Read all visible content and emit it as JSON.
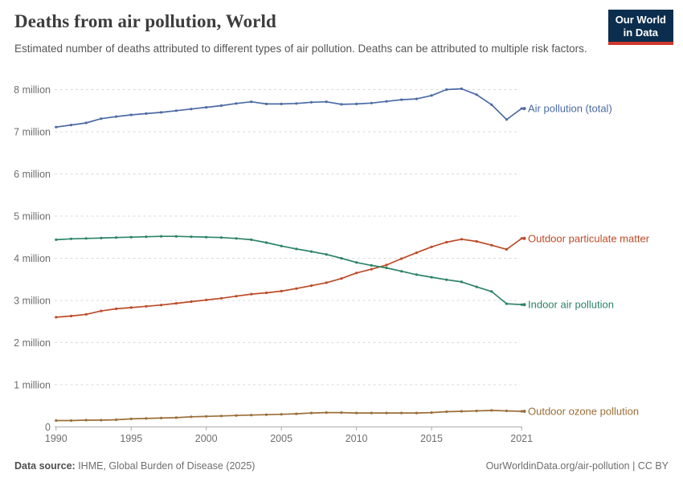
{
  "header": {
    "title": "Deaths from air pollution, World",
    "subtitle": "Estimated number of deaths attributed to different types of air pollution. Deaths can be attributed to multiple risk factors.",
    "logo": {
      "line1": "Our World",
      "line2": "in Data",
      "bg_color": "#0c2e4e",
      "bar_color": "#d0382d"
    }
  },
  "chart_data": {
    "type": "line",
    "title": "Deaths from air pollution, World",
    "xlabel": "",
    "ylabel": "",
    "xlim": [
      1990,
      2021
    ],
    "ylim": [
      0,
      8000000
    ],
    "grid": "horizontal-dashed",
    "legend": "end-of-line-labels",
    "x": [
      1990,
      1991,
      1992,
      1993,
      1994,
      1995,
      1996,
      1997,
      1998,
      1999,
      2000,
      2001,
      2002,
      2003,
      2004,
      2005,
      2006,
      2007,
      2008,
      2009,
      2010,
      2011,
      2012,
      2013,
      2014,
      2015,
      2016,
      2017,
      2018,
      2019,
      2020,
      2021
    ],
    "unit": "million deaths",
    "series": [
      {
        "id": "total",
        "name": "Air pollution (total)",
        "color": "#4c6ba4",
        "values": [
          7.11,
          7.16,
          7.21,
          7.31,
          7.36,
          7.4,
          7.43,
          7.46,
          7.5,
          7.54,
          7.58,
          7.62,
          7.67,
          7.71,
          7.66,
          7.66,
          7.67,
          7.7,
          7.71,
          7.65,
          7.66,
          7.68,
          7.72,
          7.76,
          7.78,
          7.86,
          8.0,
          8.02,
          7.88,
          7.64,
          7.29,
          7.55
        ]
      },
      {
        "id": "outdoor-particulate-matter",
        "name": "Outdoor particulate matter",
        "color": "#bc4b28",
        "values": [
          2.6,
          2.63,
          2.67,
          2.75,
          2.8,
          2.83,
          2.86,
          2.89,
          2.93,
          2.97,
          3.01,
          3.05,
          3.1,
          3.15,
          3.18,
          3.22,
          3.28,
          3.35,
          3.42,
          3.52,
          3.65,
          3.74,
          3.84,
          3.99,
          4.13,
          4.27,
          4.38,
          4.45,
          4.4,
          4.31,
          4.21,
          4.47
        ]
      },
      {
        "id": "indoor-air-pollution",
        "name": "Indoor air pollution",
        "color": "#2c8465",
        "values": [
          4.44,
          4.46,
          4.47,
          4.48,
          4.49,
          4.5,
          4.51,
          4.52,
          4.52,
          4.51,
          4.5,
          4.49,
          4.47,
          4.44,
          4.37,
          4.29,
          4.22,
          4.16,
          4.09,
          4.0,
          3.9,
          3.83,
          3.77,
          3.69,
          3.61,
          3.55,
          3.49,
          3.44,
          3.32,
          3.21,
          2.92,
          2.9
        ]
      },
      {
        "id": "outdoor-ozone-pollution",
        "name": "Outdoor ozone pollution",
        "color": "#9b6e38",
        "values": [
          0.15,
          0.15,
          0.16,
          0.16,
          0.17,
          0.19,
          0.2,
          0.21,
          0.22,
          0.24,
          0.25,
          0.26,
          0.27,
          0.28,
          0.29,
          0.3,
          0.31,
          0.33,
          0.34,
          0.34,
          0.33,
          0.33,
          0.33,
          0.33,
          0.33,
          0.34,
          0.36,
          0.37,
          0.38,
          0.39,
          0.38,
          0.37
        ]
      }
    ],
    "yticks": [
      {
        "value": 8,
        "label": "8 million"
      },
      {
        "value": 7,
        "label": "7 million"
      },
      {
        "value": 6,
        "label": "6 million"
      },
      {
        "value": 5,
        "label": "5 million"
      },
      {
        "value": 4,
        "label": "4 million"
      },
      {
        "value": 3,
        "label": "3 million"
      },
      {
        "value": 2,
        "label": "2 million"
      },
      {
        "value": 1,
        "label": "1 million"
      },
      {
        "value": 0,
        "label": "0"
      }
    ],
    "xticks": [
      {
        "value": 1990,
        "label": "1990"
      },
      {
        "value": 1995,
        "label": "1995"
      },
      {
        "value": 2000,
        "label": "2000"
      },
      {
        "value": 2005,
        "label": "2005"
      },
      {
        "value": 2010,
        "label": "2010"
      },
      {
        "value": 2015,
        "label": "2015"
      },
      {
        "value": 2021,
        "label": "2021"
      }
    ]
  },
  "footer": {
    "source_label": "Data source:",
    "source_text": " IHME, Global Burden of Disease (2025)",
    "credit": "OurWorldinData.org/air-pollution | CC BY"
  }
}
